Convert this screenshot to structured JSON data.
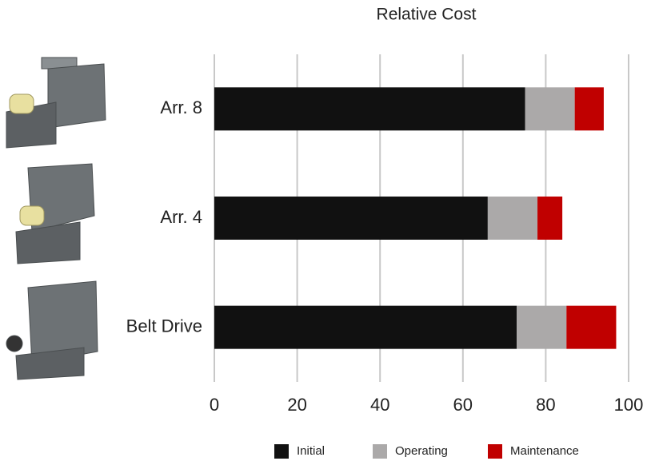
{
  "chart_data": {
    "type": "stacked_barh",
    "title": "Relative Cost",
    "categories": [
      "Arr. 8",
      "Arr. 4",
      "Belt Drive"
    ],
    "series": [
      {
        "name": "Initial",
        "color": "#111111",
        "values": [
          75,
          66,
          73
        ]
      },
      {
        "name": "Operating",
        "color": "#aba9a9",
        "values": [
          12,
          12,
          12
        ]
      },
      {
        "name": "Maintenance",
        "color": "#c00000",
        "values": [
          7,
          6,
          12
        ]
      }
    ],
    "xlim": [
      0,
      100
    ],
    "xticks": [
      0,
      20,
      40,
      60,
      80,
      100
    ],
    "grid": true,
    "legend": "bottom"
  }
}
